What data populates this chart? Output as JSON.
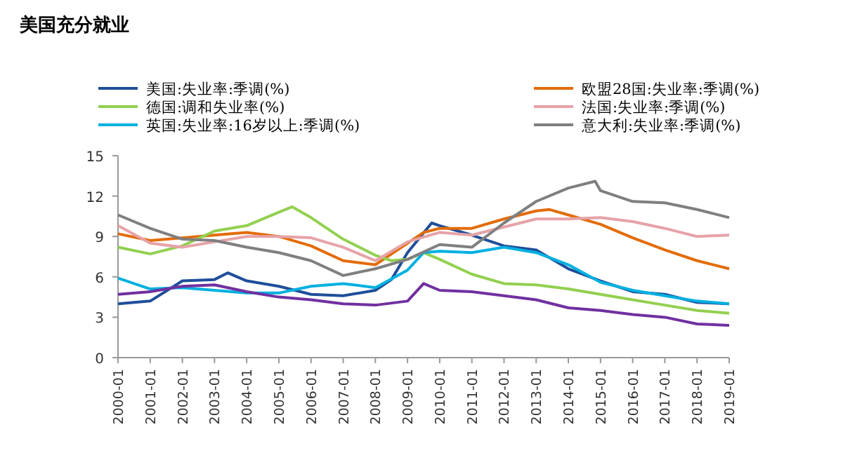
{
  "chart_data": {
    "type": "line",
    "title": "美国充分就业",
    "legend": "top",
    "marker": "none",
    "line_style": "solid",
    "grid": false,
    "ylim": [
      0,
      15
    ],
    "yticks": [
      0,
      3,
      6,
      9,
      12,
      15
    ],
    "xlim": [
      "2000-01",
      "2019-01"
    ],
    "xticks": [
      "2000-01",
      "2001-01",
      "2002-01",
      "2003-01",
      "2004-01",
      "2005-01",
      "2006-01",
      "2007-01",
      "2008-01",
      "2009-01",
      "2010-01",
      "2011-01",
      "2012-01",
      "2013-01",
      "2014-01",
      "2015-01",
      "2016-01",
      "2017-01",
      "2018-01",
      "2019-01"
    ],
    "series": [
      {
        "name": "美国:失业率:季调(%)",
        "color": "#1f4e9a",
        "x": [
          "2000-01",
          "2001-01",
          "2002-01",
          "2003-01",
          "2003-06",
          "2004-01",
          "2005-01",
          "2006-01",
          "2007-01",
          "2008-01",
          "2008-07",
          "2009-01",
          "2009-10",
          "2010-01",
          "2011-01",
          "2012-01",
          "2013-01",
          "2014-01",
          "2015-01",
          "2016-01",
          "2017-01",
          "2018-01",
          "2019-01"
        ],
        "values": [
          4.0,
          4.2,
          5.7,
          5.8,
          6.3,
          5.7,
          5.3,
          4.7,
          4.6,
          5.0,
          5.8,
          7.8,
          10.0,
          9.8,
          9.1,
          8.3,
          8.0,
          6.6,
          5.7,
          4.9,
          4.7,
          4.1,
          4.0
        ]
      },
      {
        "name": "欧盟28国:失业率:季调(%)",
        "color": "#e36c09",
        "x": [
          "2000-01",
          "2001-01",
          "2002-01",
          "2003-01",
          "2004-01",
          "2005-01",
          "2006-01",
          "2007-01",
          "2008-01",
          "2009-01",
          "2009-07",
          "2010-01",
          "2011-01",
          "2012-01",
          "2013-01",
          "2013-06",
          "2014-01",
          "2015-01",
          "2016-01",
          "2017-01",
          "2018-01",
          "2019-01"
        ],
        "values": [
          9.2,
          8.7,
          8.9,
          9.1,
          9.3,
          9.0,
          8.3,
          7.2,
          6.9,
          8.5,
          9.3,
          9.6,
          9.6,
          10.3,
          10.9,
          11.0,
          10.6,
          9.9,
          8.9,
          8.0,
          7.2,
          6.6
        ]
      },
      {
        "name": "德国:调和失业率(%)",
        "color": "#92d050",
        "x": [
          "2000-01",
          "2001-01",
          "2002-01",
          "2003-01",
          "2004-01",
          "2005-01",
          "2005-06",
          "2006-01",
          "2007-01",
          "2008-01",
          "2008-07",
          "2009-01",
          "2009-07",
          "2010-01",
          "2011-01",
          "2012-01",
          "2013-01",
          "2014-01",
          "2015-01",
          "2016-01",
          "2017-01",
          "2018-01",
          "2019-01"
        ],
        "values": [
          8.2,
          7.7,
          8.3,
          9.4,
          9.8,
          10.8,
          11.2,
          10.4,
          8.8,
          7.6,
          7.2,
          7.3,
          7.8,
          7.3,
          6.2,
          5.5,
          5.4,
          5.1,
          4.7,
          4.3,
          3.9,
          3.5,
          3.3
        ]
      },
      {
        "name": "法国:失业率:季调(%)",
        "color": "#e6a3a8",
        "x": [
          "2000-01",
          "2001-01",
          "2002-01",
          "2003-01",
          "2004-01",
          "2005-01",
          "2006-01",
          "2007-01",
          "2008-01",
          "2009-01",
          "2010-01",
          "2011-01",
          "2012-01",
          "2013-01",
          "2014-01",
          "2015-01",
          "2016-01",
          "2017-01",
          "2018-01",
          "2019-01"
        ],
        "values": [
          9.8,
          8.5,
          8.2,
          8.6,
          9.0,
          9.0,
          8.9,
          8.2,
          7.2,
          8.6,
          9.3,
          9.1,
          9.7,
          10.3,
          10.3,
          10.4,
          10.1,
          9.6,
          9.0,
          9.1
        ]
      },
      {
        "name": "英国:失业率:16岁以上:季调(%)",
        "color": "#00b0e0",
        "x": [
          "2000-01",
          "2001-01",
          "2002-01",
          "2003-01",
          "2004-01",
          "2005-01",
          "2006-01",
          "2007-01",
          "2008-01",
          "2009-01",
          "2009-07",
          "2010-01",
          "2011-01",
          "2012-01",
          "2013-01",
          "2014-01",
          "2015-01",
          "2016-01",
          "2017-01",
          "2018-01",
          "2019-01"
        ],
        "values": [
          5.9,
          5.1,
          5.2,
          5.0,
          4.8,
          4.8,
          5.3,
          5.5,
          5.2,
          6.5,
          7.8,
          7.9,
          7.8,
          8.2,
          7.8,
          6.9,
          5.6,
          5.0,
          4.6,
          4.2,
          4.0
        ]
      },
      {
        "name": "意大利:失业率:季调(%)",
        "color": "#7f7f7f",
        "x": [
          "2000-01",
          "2001-01",
          "2002-01",
          "2003-01",
          "2004-01",
          "2005-01",
          "2006-01",
          "2007-01",
          "2008-01",
          "2009-01",
          "2010-01",
          "2011-01",
          "2012-01",
          "2013-01",
          "2014-01",
          "2014-11",
          "2015-01",
          "2016-01",
          "2017-01",
          "2018-01",
          "2019-01"
        ],
        "values": [
          10.6,
          9.6,
          8.8,
          8.7,
          8.2,
          7.8,
          7.2,
          6.1,
          6.6,
          7.3,
          8.4,
          8.2,
          10.0,
          11.6,
          12.6,
          13.1,
          12.4,
          11.6,
          11.5,
          11.0,
          10.4
        ]
      },
      {
        "color": "#7030a0",
        "x": [
          "2000-01",
          "2001-01",
          "2002-01",
          "2003-01",
          "2004-01",
          "2005-01",
          "2006-01",
          "2007-01",
          "2008-01",
          "2009-01",
          "2009-07",
          "2010-01",
          "2011-01",
          "2012-01",
          "2013-01",
          "2014-01",
          "2015-01",
          "2016-01",
          "2017-01",
          "2018-01",
          "2019-01"
        ],
        "values": [
          4.7,
          4.9,
          5.3,
          5.4,
          4.9,
          4.5,
          4.3,
          4.0,
          3.9,
          4.2,
          5.5,
          5.0,
          4.9,
          4.6,
          4.3,
          3.7,
          3.5,
          3.2,
          3.0,
          2.5,
          2.4
        ]
      }
    ]
  }
}
